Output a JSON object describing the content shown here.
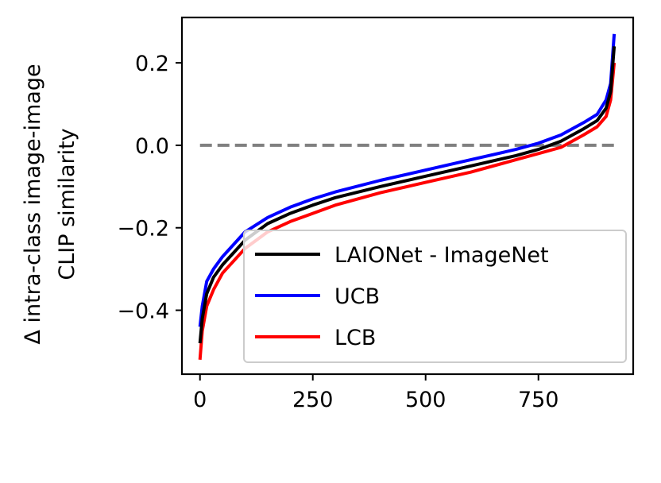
{
  "chart_data": {
    "type": "line",
    "title": "",
    "xlabel": "",
    "ylabel_lines": [
      "Δ intra-class image-image",
      "CLIP similarity"
    ],
    "xlim": [
      -40,
      960
    ],
    "ylim": [
      -0.555,
      0.31
    ],
    "xticks": [
      0,
      250,
      500,
      750
    ],
    "yticks": [
      -0.4,
      -0.2,
      0.0,
      0.2
    ],
    "ytick_labels": [
      "−0.4",
      "−0.2",
      "0.0",
      "0.2"
    ],
    "grid": false,
    "legend_position": "lower-right",
    "reference_line": {
      "y": 0.0,
      "x_range": [
        0,
        920
      ],
      "style": "dashed",
      "color": "#808080"
    },
    "series": [
      {
        "name": "LAIONet - ImageNet",
        "color": "#000000",
        "x": [
          0,
          5,
          15,
          30,
          50,
          75,
          100,
          150,
          200,
          250,
          300,
          400,
          500,
          600,
          700,
          750,
          800,
          850,
          880,
          900,
          910,
          918
        ],
        "y": [
          -0.48,
          -0.42,
          -0.36,
          -0.32,
          -0.29,
          -0.26,
          -0.23,
          -0.19,
          -0.165,
          -0.145,
          -0.127,
          -0.1,
          -0.075,
          -0.05,
          -0.025,
          -0.01,
          0.01,
          0.04,
          0.06,
          0.09,
          0.13,
          0.24
        ]
      },
      {
        "name": "UCB",
        "color": "#0000ff",
        "x": [
          0,
          5,
          15,
          30,
          50,
          75,
          100,
          150,
          200,
          250,
          300,
          400,
          500,
          600,
          700,
          750,
          800,
          850,
          880,
          900,
          910,
          918
        ],
        "y": [
          -0.44,
          -0.39,
          -0.33,
          -0.3,
          -0.27,
          -0.24,
          -0.21,
          -0.175,
          -0.15,
          -0.13,
          -0.113,
          -0.085,
          -0.06,
          -0.035,
          -0.01,
          0.005,
          0.025,
          0.055,
          0.075,
          0.11,
          0.15,
          0.27
        ]
      },
      {
        "name": "LCB",
        "color": "#ff0000",
        "x": [
          0,
          5,
          15,
          30,
          50,
          75,
          100,
          150,
          200,
          250,
          300,
          400,
          500,
          600,
          700,
          750,
          800,
          850,
          880,
          900,
          910,
          918
        ],
        "y": [
          -0.52,
          -0.45,
          -0.39,
          -0.35,
          -0.31,
          -0.28,
          -0.25,
          -0.21,
          -0.185,
          -0.165,
          -0.145,
          -0.115,
          -0.09,
          -0.065,
          -0.035,
          -0.02,
          -0.005,
          0.025,
          0.045,
          0.07,
          0.11,
          0.2
        ]
      }
    ]
  }
}
